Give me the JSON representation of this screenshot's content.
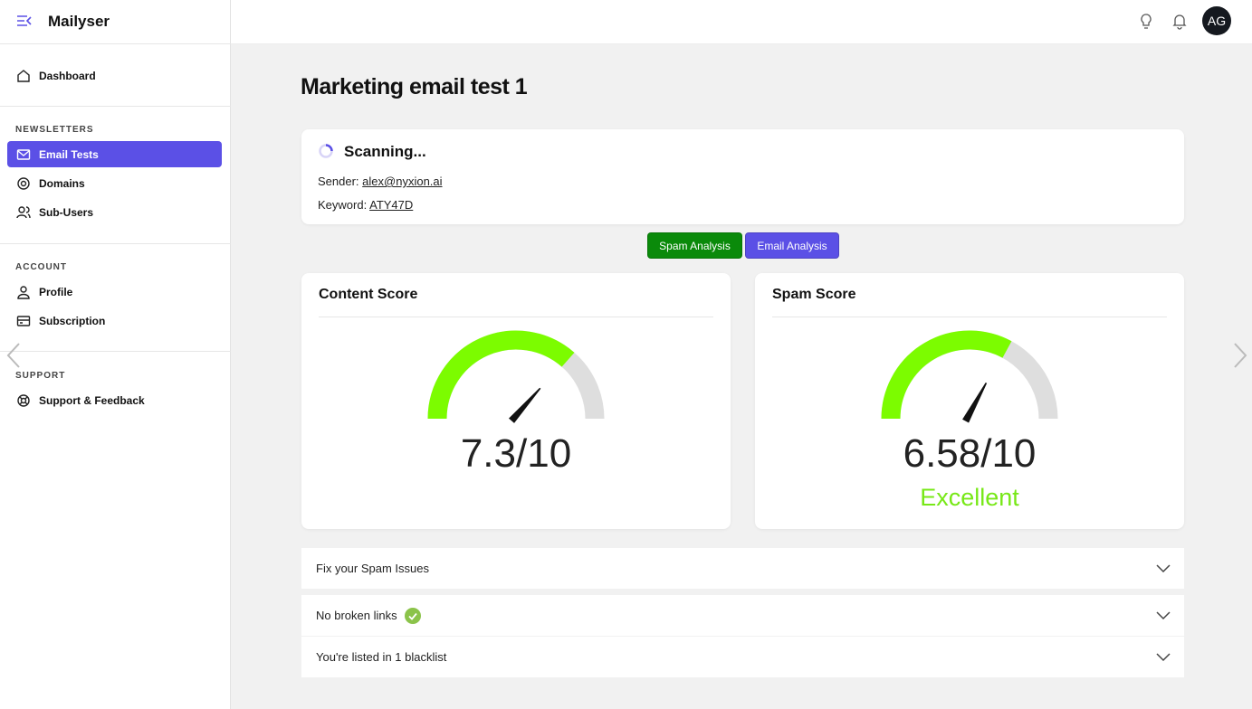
{
  "app": {
    "name": "Mailyser",
    "user_initials": "AG"
  },
  "sidebar": {
    "items": [
      {
        "label": "Dashboard"
      }
    ],
    "sections": [
      {
        "title": "NEWSLETTERS",
        "items": [
          {
            "label": "Email Tests",
            "active": true
          },
          {
            "label": "Domains"
          },
          {
            "label": "Sub-Users"
          }
        ]
      },
      {
        "title": "ACCOUNT",
        "items": [
          {
            "label": "Profile"
          },
          {
            "label": "Subscription"
          }
        ]
      },
      {
        "title": "SUPPORT",
        "items": [
          {
            "label": "Support & Feedback"
          }
        ]
      }
    ]
  },
  "page": {
    "title": "Marketing email test 1",
    "status": "Scanning...",
    "sender_label": "Sender:",
    "sender": "alex@nyxion.ai",
    "keyword_label": "Keyword:",
    "keyword": "ATY47D"
  },
  "tabs": [
    "Spam Analysis",
    "Email Analysis"
  ],
  "gauges": [
    {
      "title": "Content Score",
      "score": 7.3,
      "max": 10,
      "score_label": "7.3/10"
    },
    {
      "title": "Spam Score",
      "score": 6.58,
      "max": 10,
      "score_label": "6.58/10",
      "rating": "Excellent"
    }
  ],
  "accordion": [
    {
      "label": "Fix your Spam Issues"
    },
    {
      "label": "No broken links",
      "ok": true
    },
    {
      "label": "You're listed in 1 blacklist"
    }
  ]
}
